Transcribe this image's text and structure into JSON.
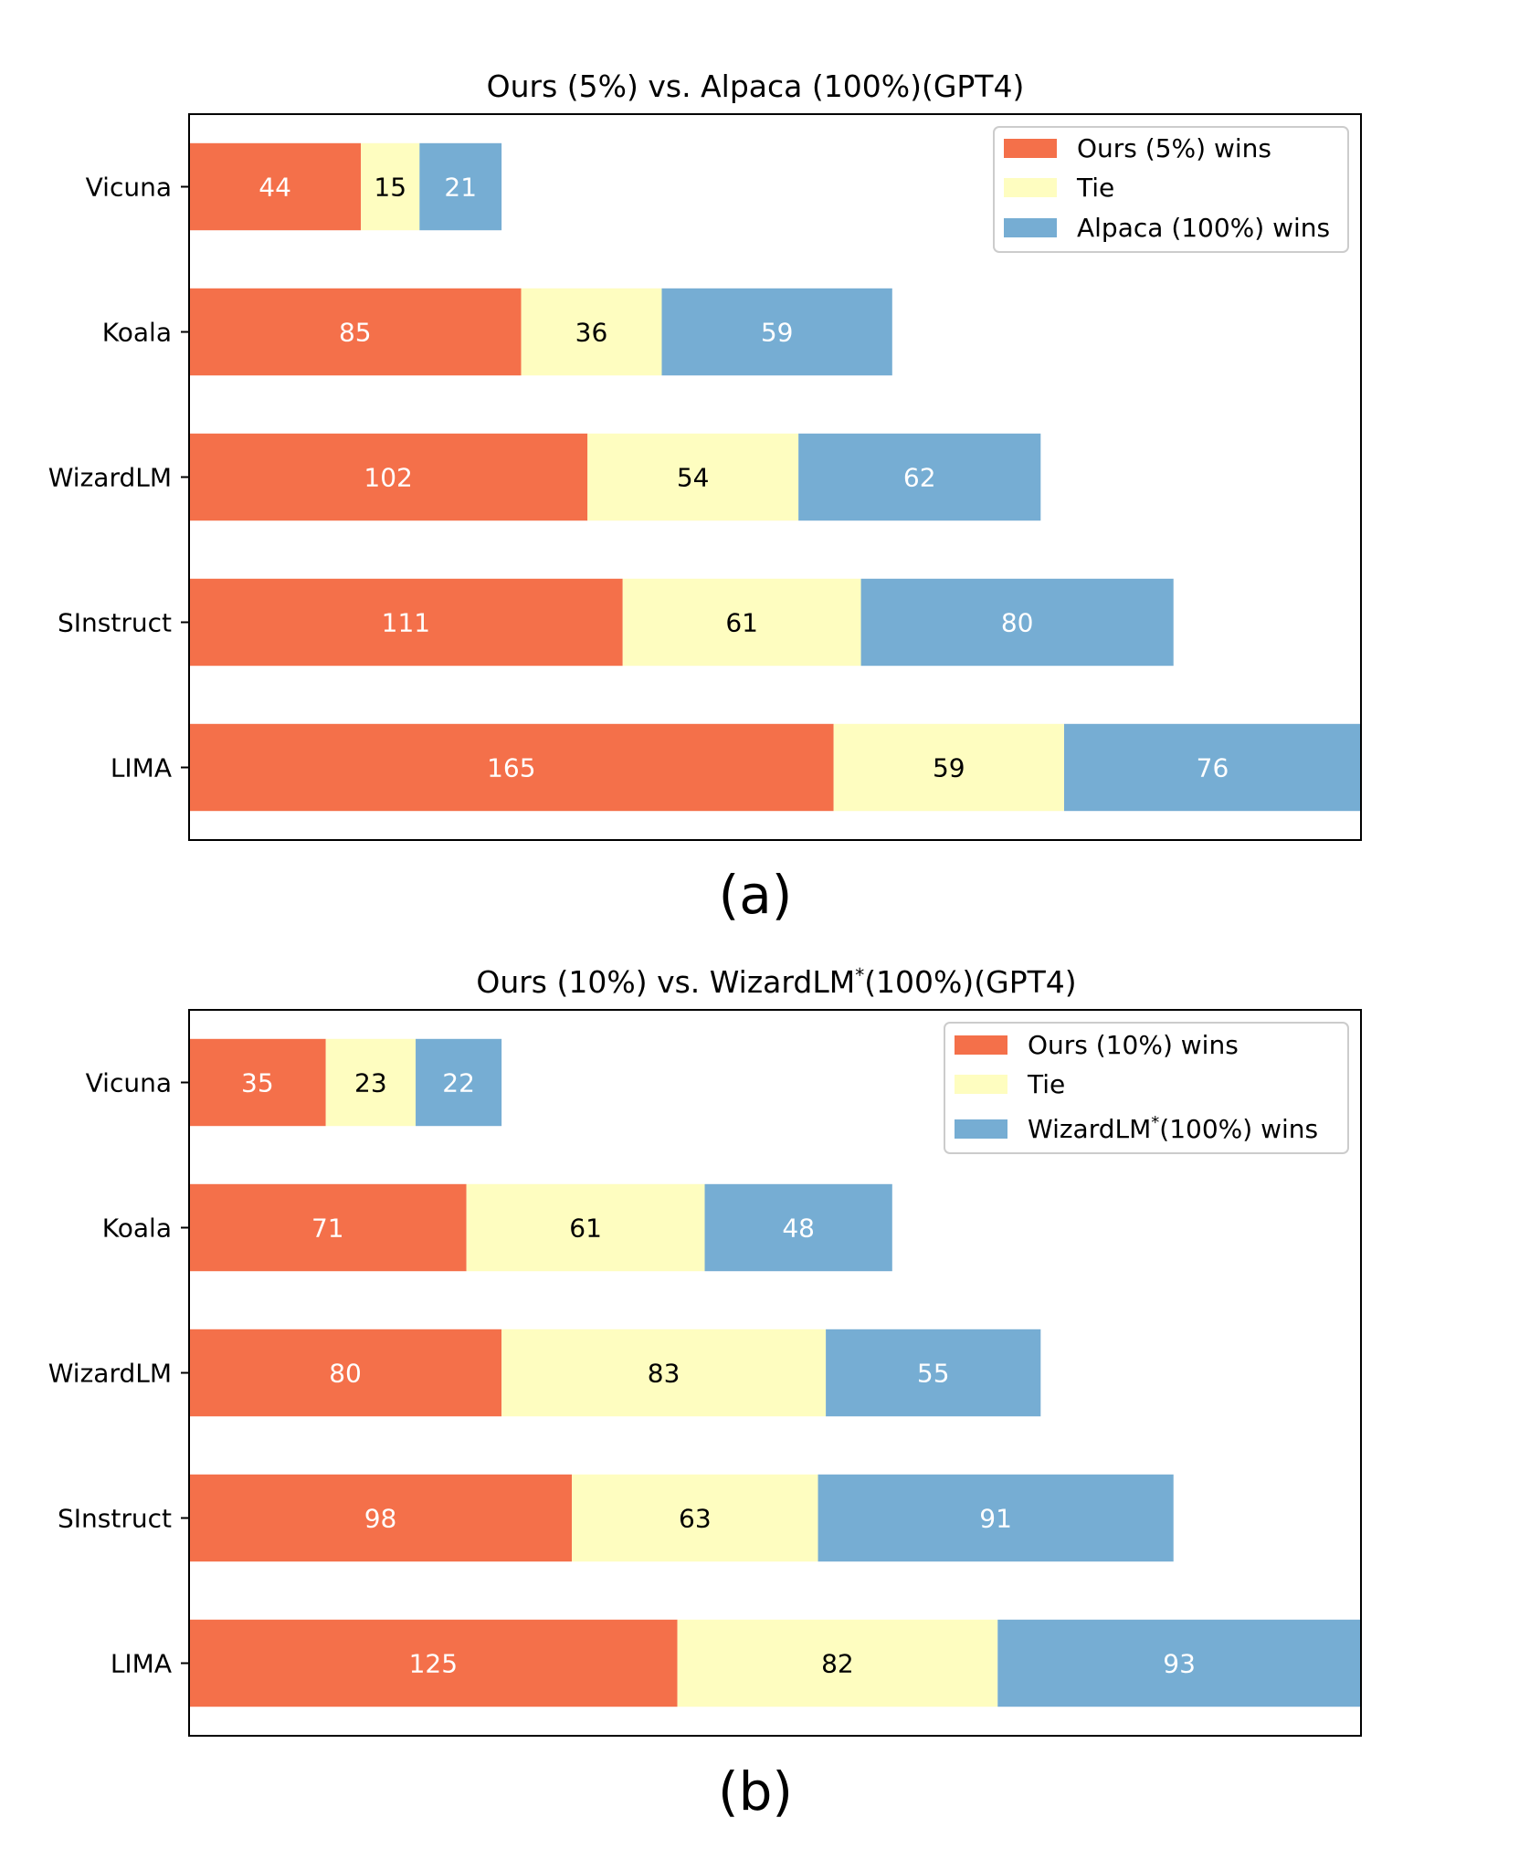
{
  "chart_data": [
    {
      "type": "bar",
      "orientation": "horizontal",
      "stacked": true,
      "title": "Ours (5%) vs. Alpaca (100%)(GPT4)",
      "panel_label": "(a)",
      "categories": [
        "Vicuna",
        "Koala",
        "WizardLM",
        "SInstruct",
        "LIMA"
      ],
      "series": [
        {
          "name": "Ours (5%) wins",
          "values": [
            44,
            85,
            102,
            111,
            165
          ],
          "color": "#f4704a",
          "label_color": "#ffffff"
        },
        {
          "name": "Tie",
          "values": [
            15,
            36,
            54,
            61,
            59
          ],
          "color": "#fefdc0",
          "label_color": "#000000"
        },
        {
          "name": "Alpaca (100%) wins",
          "values": [
            21,
            59,
            62,
            80,
            76
          ],
          "color": "#76add3",
          "label_color": "#ffffff"
        }
      ],
      "xlim": [
        0,
        300
      ],
      "legend": {
        "position": "top-right"
      },
      "xlabel": "",
      "ylabel": ""
    },
    {
      "type": "bar",
      "orientation": "horizontal",
      "stacked": true,
      "title_parts": {
        "prefix": "Ours (10%) vs. WizardLM",
        "sup": "*",
        "suffix": "(100%)(GPT4)"
      },
      "panel_label": "(b)",
      "categories": [
        "Vicuna",
        "Koala",
        "WizardLM",
        "SInstruct",
        "LIMA"
      ],
      "series": [
        {
          "name": "Ours (10%) wins",
          "values": [
            35,
            71,
            80,
            98,
            125
          ],
          "color": "#f4704a",
          "label_color": "#ffffff"
        },
        {
          "name": "Tie",
          "values": [
            23,
            61,
            83,
            63,
            82
          ],
          "color": "#fefdc0",
          "label_color": "#000000"
        },
        {
          "name_parts": {
            "prefix": "WizardLM",
            "sup": "*",
            "suffix": "(100%) wins"
          },
          "values": [
            22,
            48,
            55,
            91,
            93
          ],
          "color": "#76add3",
          "label_color": "#ffffff"
        }
      ],
      "xlim": [
        0,
        300
      ],
      "legend": {
        "position": "top-right"
      },
      "xlabel": "",
      "ylabel": ""
    }
  ]
}
